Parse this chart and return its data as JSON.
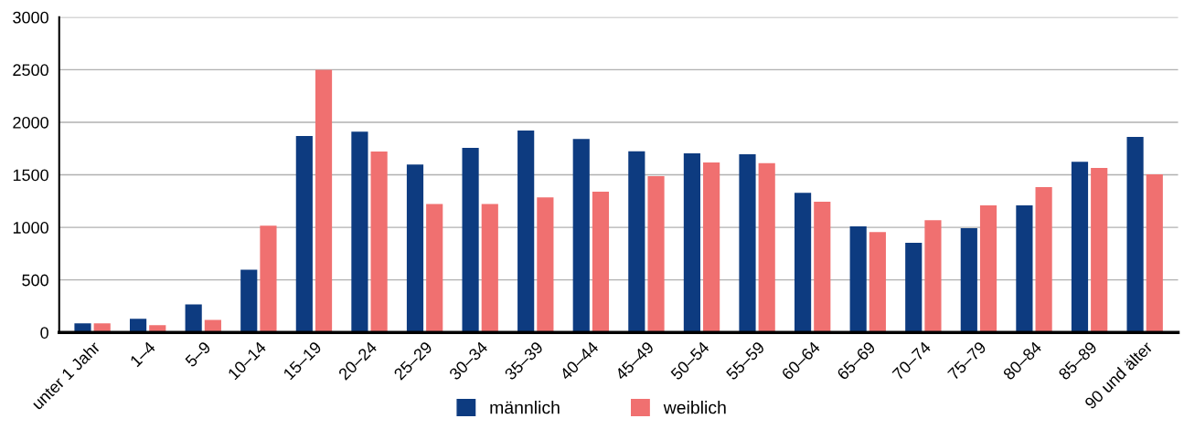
{
  "chart_data": {
    "type": "bar",
    "categories": [
      "unter 1 Jahr",
      "1–4",
      "5–9",
      "10–14",
      "15–19",
      "20–24",
      "25–29",
      "30–34",
      "35–39",
      "40–44",
      "45–49",
      "50–54",
      "55–59",
      "60–64",
      "65–69",
      "70–74",
      "75–79",
      "80–84",
      "85–89",
      "90 und älter"
    ],
    "series": [
      {
        "name": "männlich",
        "color": "#0d3b80",
        "values": [
          86,
          131,
          268,
          598,
          1869,
          1911,
          1598,
          1756,
          1921,
          1842,
          1723,
          1705,
          1695,
          1329,
          1009,
          854,
          992,
          1210,
          1624,
          1860
        ]
      },
      {
        "name": "weiblich",
        "color": "#f07070",
        "values": [
          86,
          69,
          120,
          1017,
          2500,
          1722,
          1223,
          1223,
          1285,
          1340,
          1487,
          1617,
          1610,
          1245,
          956,
          1069,
          1210,
          1382,
          1565,
          1505
        ]
      }
    ],
    "ylim": [
      0,
      3000
    ],
    "yticks": [
      0,
      500,
      1000,
      1500,
      2000,
      2500,
      3000
    ],
    "grid": "y",
    "legend": "bottom"
  }
}
